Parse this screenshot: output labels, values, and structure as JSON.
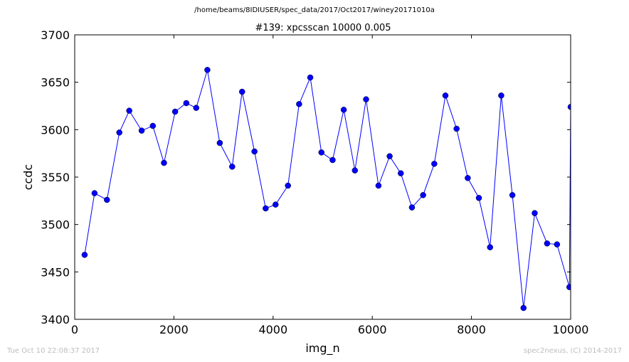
{
  "figure": {
    "suptitle": "/home/beams/8IDIUSER/spec_data/2017/Oct2017/winey20171010a",
    "timestamp": "Tue Oct 10 22:08:37 2017",
    "credit": "spec2nexus, (C) 2014-2017"
  },
  "chart_data": {
    "type": "line",
    "title": "#139: xpcsscan 10000 0.005",
    "xlabel": "img_n",
    "ylabel": "ccdc",
    "xlim": [
      0,
      10000
    ],
    "ylim": [
      3400,
      3700
    ],
    "xticks": [
      0,
      2000,
      4000,
      6000,
      8000,
      10000
    ],
    "yticks": [
      3400,
      3450,
      3500,
      3550,
      3600,
      3650,
      3700
    ],
    "grid": false,
    "color": "#0000ff",
    "marker": "circle",
    "x": [
      200,
      400,
      650,
      900,
      1100,
      1350,
      1575,
      1800,
      2025,
      2250,
      2450,
      2675,
      2925,
      3175,
      3375,
      3625,
      3850,
      4050,
      4300,
      4525,
      4750,
      4975,
      5200,
      5425,
      5650,
      5875,
      6125,
      6350,
      6575,
      6800,
      7025,
      7250,
      7475,
      7700,
      7925,
      8150,
      8375,
      8600,
      8825,
      9050,
      9275,
      9525,
      9725,
      9975,
      10000
    ],
    "y": [
      3468,
      3533,
      3526,
      3597,
      3620,
      3599,
      3604,
      3565,
      3619,
      3628,
      3623,
      3663,
      3586,
      3561,
      3640,
      3577,
      3517,
      3521,
      3541,
      3627,
      3655,
      3576,
      3568,
      3621,
      3557,
      3632,
      3541,
      3572,
      3554,
      3518,
      3531,
      3564,
      3636,
      3601,
      3549,
      3528,
      3476,
      3636,
      3531,
      3412,
      3512,
      3480,
      3479,
      3434,
      3624
    ]
  }
}
